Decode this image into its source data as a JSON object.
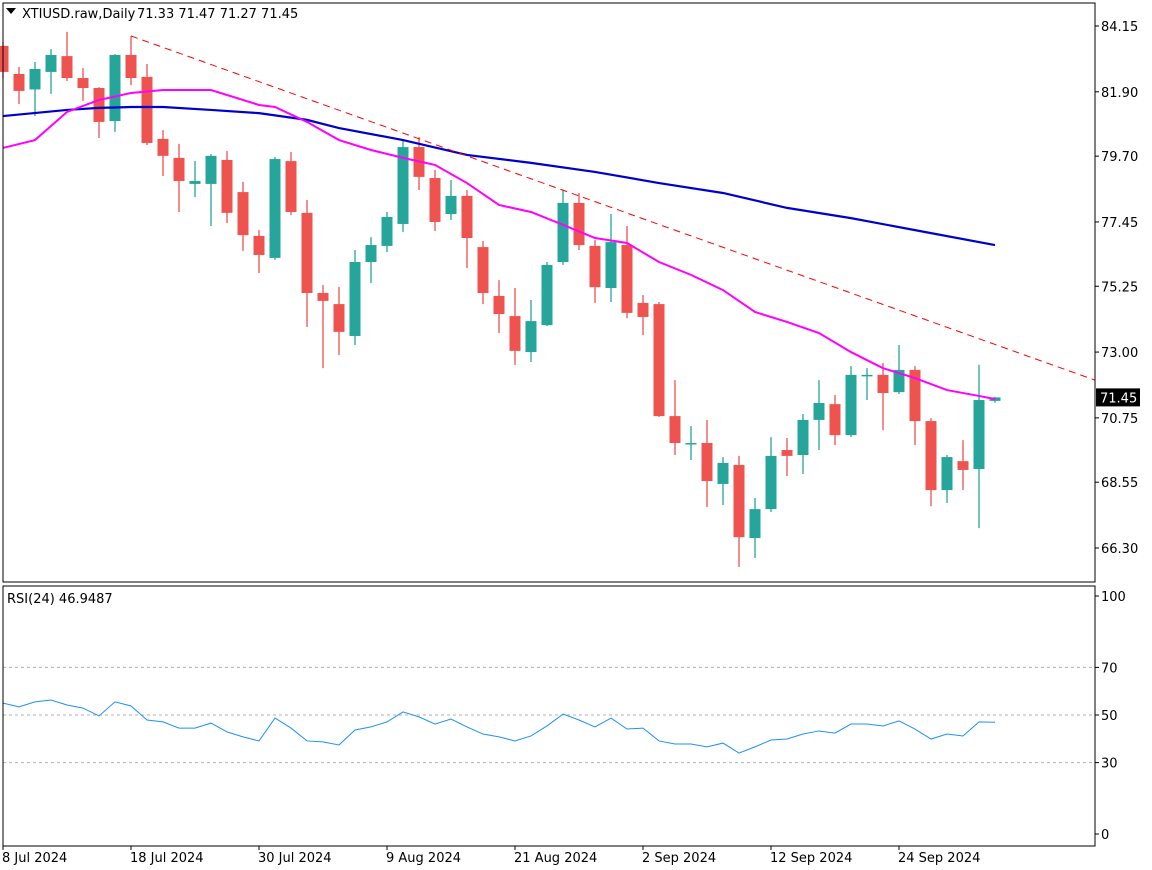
{
  "header": {
    "symbol_label": "XTIUSD.raw,Daily",
    "ohlc_label": "71.33 71.47 71.27 71.45"
  },
  "colors": {
    "bull": "#26a69a",
    "bear": "#ef5350",
    "ma_fast": "#ff00ff",
    "ma_slow": "#0000cd",
    "trendline": "#ff0000",
    "rsi": "#1e90ff",
    "price_tag_bg": "#000000"
  },
  "chart_data": [
    {
      "type": "candlestick",
      "title": "XTIUSD.raw,Daily",
      "price_axis": {
        "ylim": [
          65.95,
          84.45
        ],
        "ticks": [
          "84.15",
          "81.90",
          "79.70",
          "77.45",
          "75.25",
          "73.00",
          "70.75",
          "68.55",
          "66.30"
        ]
      },
      "current_price": "71.45",
      "date_ticks": [
        {
          "index": 0,
          "label": "8 Jul 2024"
        },
        {
          "index": 8,
          "label": "18 Jul 2024"
        },
        {
          "index": 16,
          "label": "30 Jul 2024"
        },
        {
          "index": 24,
          "label": "9 Aug 2024"
        },
        {
          "index": 32,
          "label": "21 Aug 2024"
        },
        {
          "index": 40,
          "label": "2 Sep 2024"
        },
        {
          "index": 48,
          "label": "12 Sep 2024"
        },
        {
          "index": 56,
          "label": "24 Sep 2024"
        }
      ],
      "ohlc": [
        [
          83.47,
          83.6,
          82.37,
          82.58
        ],
        [
          82.51,
          82.75,
          81.48,
          81.93
        ],
        [
          81.98,
          82.92,
          81.07,
          82.68
        ],
        [
          82.58,
          83.36,
          81.83,
          83.16
        ],
        [
          83.12,
          83.95,
          82.27,
          82.37
        ],
        [
          82.37,
          82.71,
          81.59,
          82.03
        ],
        [
          82.03,
          82.06,
          80.32,
          80.87
        ],
        [
          80.9,
          83.19,
          80.53,
          83.16
        ],
        [
          83.16,
          83.81,
          82.13,
          82.37
        ],
        [
          82.41,
          82.85,
          80.08,
          80.15
        ],
        [
          80.29,
          80.59,
          79.02,
          79.71
        ],
        [
          79.64,
          80.12,
          77.79,
          78.85
        ],
        [
          78.75,
          79.53,
          78.3,
          78.85
        ],
        [
          78.75,
          79.77,
          77.31,
          79.71
        ],
        [
          79.57,
          79.88,
          77.41,
          77.76
        ],
        [
          78.47,
          78.82,
          76.46,
          77.0
        ],
        [
          76.97,
          77.17,
          75.7,
          76.32
        ],
        [
          76.22,
          79.67,
          76.15,
          79.6
        ],
        [
          79.53,
          79.84,
          77.69,
          77.79
        ],
        [
          77.76,
          78.2,
          73.86,
          75.02
        ],
        [
          75.02,
          75.29,
          72.45,
          74.75
        ],
        [
          74.64,
          75.23,
          72.9,
          73.69
        ],
        [
          73.55,
          76.49,
          73.24,
          76.08
        ],
        [
          76.08,
          76.93,
          75.36,
          76.66
        ],
        [
          76.63,
          77.79,
          76.42,
          77.62
        ],
        [
          77.38,
          80.25,
          77.11,
          80.01
        ],
        [
          80.01,
          80.35,
          78.54,
          78.99
        ],
        [
          78.95,
          79.23,
          77.14,
          77.45
        ],
        [
          77.72,
          78.88,
          77.52,
          78.34
        ],
        [
          78.34,
          78.54,
          75.87,
          76.9
        ],
        [
          76.59,
          76.8,
          74.64,
          75.02
        ],
        [
          74.92,
          75.46,
          73.65,
          74.3
        ],
        [
          74.23,
          75.19,
          72.56,
          73.04
        ],
        [
          73.0,
          74.78,
          72.66,
          74.06
        ],
        [
          73.92,
          76.08,
          73.89,
          75.98
        ],
        [
          76.08,
          78.54,
          75.98,
          78.1
        ],
        [
          78.1,
          78.44,
          76.49,
          76.66
        ],
        [
          76.63,
          76.83,
          74.68,
          75.22
        ],
        [
          75.19,
          77.72,
          74.71,
          76.76
        ],
        [
          76.66,
          77.31,
          74.16,
          74.34
        ],
        [
          74.68,
          74.95,
          73.58,
          74.2
        ],
        [
          74.64,
          74.71,
          70.78,
          70.81
        ],
        [
          70.81,
          72.04,
          69.48,
          69.89
        ],
        [
          69.86,
          70.47,
          69.31,
          69.89
        ],
        [
          69.89,
          70.68,
          67.7,
          68.59
        ],
        [
          68.49,
          69.41,
          67.77,
          69.21
        ],
        [
          69.14,
          69.45,
          65.65,
          66.67
        ],
        [
          66.64,
          68.01,
          65.96,
          67.63
        ],
        [
          67.63,
          70.09,
          67.53,
          69.45
        ],
        [
          69.65,
          70.06,
          68.76,
          69.45
        ],
        [
          69.48,
          70.88,
          68.83,
          70.68
        ],
        [
          70.68,
          72.04,
          69.65,
          71.26
        ],
        [
          71.22,
          71.53,
          69.82,
          70.16
        ],
        [
          70.16,
          72.52,
          70.09,
          72.22
        ],
        [
          72.18,
          72.45,
          71.36,
          72.22
        ],
        [
          72.22,
          72.63,
          70.33,
          71.6
        ],
        [
          71.63,
          73.24,
          71.57,
          72.39
        ],
        [
          72.39,
          72.52,
          69.82,
          70.64
        ],
        [
          70.64,
          70.74,
          67.73,
          68.28
        ],
        [
          68.28,
          69.48,
          67.84,
          69.41
        ],
        [
          69.27,
          69.99,
          68.28,
          68.97
        ],
        [
          69.0,
          72.56,
          66.98,
          71.36
        ],
        [
          71.33,
          71.47,
          71.27,
          71.45
        ]
      ],
      "ma_fast": [
        [
          0,
          79.98
        ],
        [
          2,
          80.25
        ],
        [
          4,
          81.21
        ],
        [
          6,
          81.62
        ],
        [
          8,
          81.86
        ],
        [
          10,
          81.96
        ],
        [
          13,
          81.96
        ],
        [
          16,
          81.45
        ],
        [
          17,
          81.38
        ],
        [
          19,
          80.87
        ],
        [
          21,
          80.25
        ],
        [
          23,
          79.91
        ],
        [
          25,
          79.64
        ],
        [
          27,
          79.4
        ],
        [
          29,
          78.78
        ],
        [
          31,
          78.03
        ],
        [
          33,
          77.79
        ],
        [
          35,
          77.35
        ],
        [
          37,
          76.9
        ],
        [
          39,
          76.73
        ],
        [
          41,
          76.08
        ],
        [
          43,
          75.64
        ],
        [
          45,
          75.12
        ],
        [
          47,
          74.37
        ],
        [
          49,
          74.03
        ],
        [
          51,
          73.65
        ],
        [
          53,
          73.0
        ],
        [
          55,
          72.45
        ],
        [
          57,
          72.11
        ],
        [
          59,
          71.7
        ],
        [
          61,
          71.5
        ],
        [
          62,
          71.39
        ]
      ],
      "ma_slow": [
        [
          0,
          81.07
        ],
        [
          4,
          81.28
        ],
        [
          6,
          81.35
        ],
        [
          8,
          81.38
        ],
        [
          10,
          81.38
        ],
        [
          13,
          81.28
        ],
        [
          16,
          81.17
        ],
        [
          19,
          80.94
        ],
        [
          21,
          80.66
        ],
        [
          25,
          80.25
        ],
        [
          29,
          79.74
        ],
        [
          33,
          79.47
        ],
        [
          37,
          79.16
        ],
        [
          41,
          78.78
        ],
        [
          45,
          78.44
        ],
        [
          49,
          77.93
        ],
        [
          53,
          77.58
        ],
        [
          57,
          77.17
        ],
        [
          62,
          76.66
        ]
      ],
      "trendline": [
        [
          8,
          83.81
        ],
        [
          68.25,
          72.04
        ]
      ]
    },
    {
      "type": "line",
      "title": "RSI(24) 46.9487",
      "ylim": [
        0,
        100
      ],
      "ticks": [
        "100",
        "70",
        "50",
        "30",
        "0"
      ],
      "levels": [
        70,
        50,
        30
      ],
      "values": [
        55.0,
        53.4,
        55.5,
        56.3,
        54.2,
        52.9,
        49.6,
        55.5,
        53.8,
        47.9,
        47.1,
        44.5,
        44.5,
        46.6,
        42.9,
        40.8,
        39.1,
        48.7,
        44.5,
        39.1,
        38.7,
        37.4,
        43.7,
        45.0,
        47.1,
        51.3,
        49.2,
        46.2,
        48.3,
        45.0,
        42.0,
        40.8,
        39.1,
        41.2,
        45.4,
        50.4,
        47.9,
        45.0,
        48.7,
        44.1,
        44.5,
        39.1,
        37.8,
        37.8,
        36.6,
        38.2,
        34.0,
        36.6,
        39.5,
        39.9,
        42.0,
        43.3,
        42.4,
        46.2,
        46.2,
        45.4,
        47.5,
        44.1,
        39.9,
        42.0,
        41.2,
        47.1,
        46.95
      ]
    }
  ]
}
